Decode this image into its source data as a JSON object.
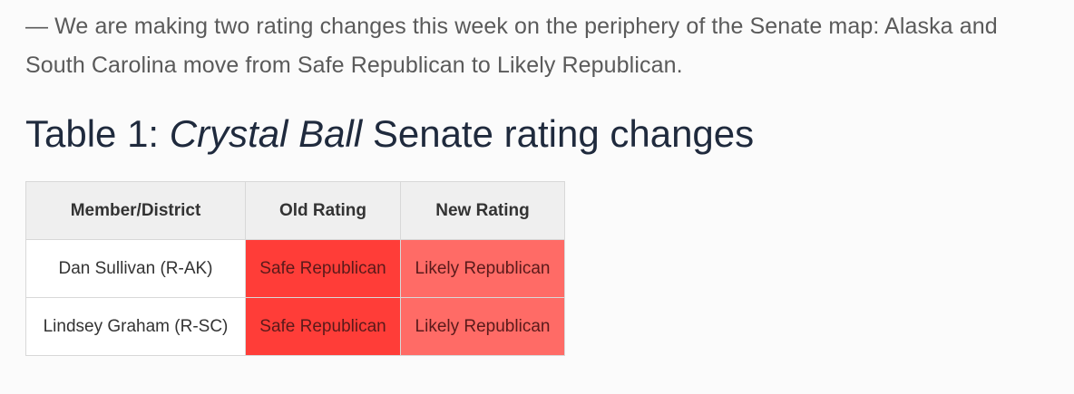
{
  "intro_text": "— We are making two rating changes this week on the periphery of the Senate map: Alaska and South Carolina move from Safe Republican to Likely Republican.",
  "title": {
    "prefix": "Table 1: ",
    "italic": "Crystal Ball",
    "suffix": " Senate rating changes"
  },
  "table": {
    "headers": [
      "Member/District",
      "Old Rating",
      "New Rating"
    ],
    "rows": [
      {
        "member": "Dan Sullivan (R-AK)",
        "old_rating": "Safe Republican",
        "new_rating": "Likely Republican"
      },
      {
        "member": "Lindsey Graham (R-SC)",
        "old_rating": "Safe Republican",
        "new_rating": "Likely Republican"
      }
    ]
  },
  "colors": {
    "safe_republican": "#ff3d38",
    "likely_republican": "#ff6b66",
    "header_bg": "#efefef",
    "title_text": "#1f2a3d",
    "body_text": "#5a5a5a"
  }
}
